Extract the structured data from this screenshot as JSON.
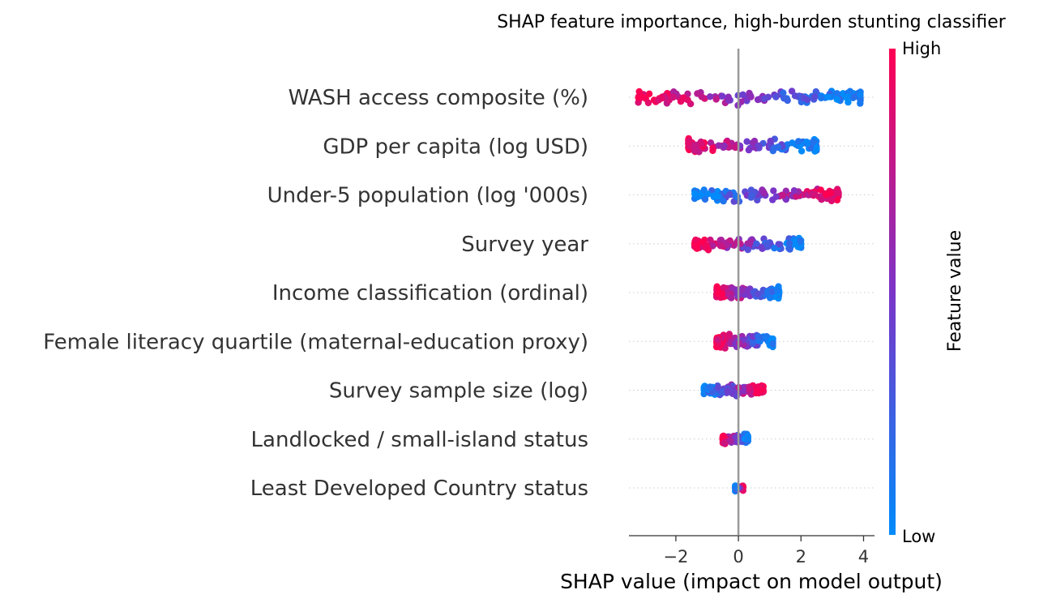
{
  "chart_data": {
    "type": "scatter",
    "subtype": "shap-beeswarm",
    "title": "SHAP feature importance, high-burden stunting classifier",
    "xlabel": "SHAP value (impact on model output)",
    "xlim": [
      -3.5,
      4.35
    ],
    "xticks": [
      {
        "value": -2,
        "label": "−2"
      },
      {
        "value": 0,
        "label": "0"
      },
      {
        "value": 2,
        "label": "2"
      },
      {
        "value": 4,
        "label": "4"
      }
    ],
    "zero_line": true,
    "grid": false,
    "colorbar": {
      "title": "Feature value",
      "high_label": "High",
      "low_label": "Low",
      "low_color": "#008bfb",
      "high_color": "#ff0052"
    },
    "features": [
      {
        "name": "WASH access composite (%)",
        "min": -3.2,
        "max": 3.9,
        "low_side": "right",
        "spread": "wide"
      },
      {
        "name": "GDP per capita (log USD)",
        "min": -1.6,
        "max": 2.5,
        "low_side": "right",
        "spread": "wide"
      },
      {
        "name": "Under-5 population (log '000s)",
        "min": -1.4,
        "max": 3.2,
        "low_side": "left",
        "spread": "medium"
      },
      {
        "name": "Survey year",
        "min": -1.4,
        "max": 2.0,
        "low_side": "right",
        "spread": "medium"
      },
      {
        "name": "Income classification (ordinal)",
        "min": -0.7,
        "max": 1.3,
        "low_side": "right",
        "spread": "medium"
      },
      {
        "name": "Female literacy quartile (maternal-education proxy)",
        "min": -0.7,
        "max": 1.1,
        "low_side": "right",
        "spread": "medium"
      },
      {
        "name": "Survey sample size (log)",
        "min": -1.1,
        "max": 0.8,
        "low_side": "left",
        "spread": "small"
      },
      {
        "name": "Landlocked / small-island status",
        "min": -0.5,
        "max": 0.3,
        "low_side": "right",
        "spread": "small"
      },
      {
        "name": "Least Developed Country status",
        "min": -0.1,
        "max": 0.15,
        "low_side": "left",
        "spread": "tiny"
      }
    ]
  }
}
